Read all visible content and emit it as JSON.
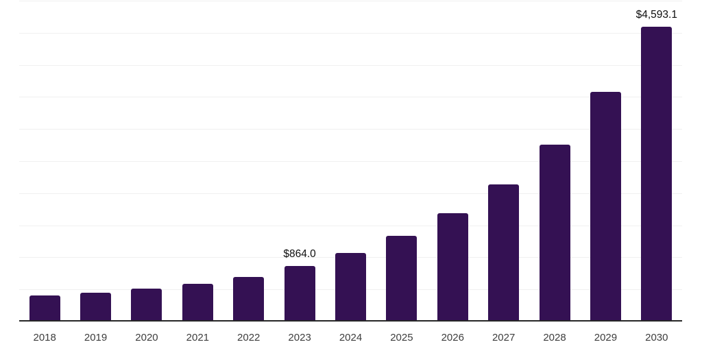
{
  "chart_data": {
    "type": "bar",
    "categories": [
      "2018",
      "2019",
      "2020",
      "2021",
      "2022",
      "2023",
      "2024",
      "2025",
      "2026",
      "2027",
      "2028",
      "2029",
      "2030"
    ],
    "values": [
      405,
      450,
      512,
      587,
      694,
      864.0,
      1068,
      1335,
      1687,
      2136,
      2755,
      3578,
      4593.1
    ],
    "data_labels": [
      "",
      "",
      "",
      "",
      "",
      "$864.0",
      "",
      "",
      "",
      "",
      "",
      "",
      "$4,593.1"
    ],
    "title": "",
    "xlabel": "",
    "ylabel": "",
    "ylim": [
      0,
      5000
    ],
    "gridline_step": 500,
    "grid": true,
    "legend": false,
    "colors": {
      "bar": "#341153",
      "gridline": "#f0f0f0",
      "axis_line": "#262626",
      "value_label": "#0d0d0d",
      "tick_label": "#3d3d3d",
      "background": "#ffffff"
    }
  }
}
